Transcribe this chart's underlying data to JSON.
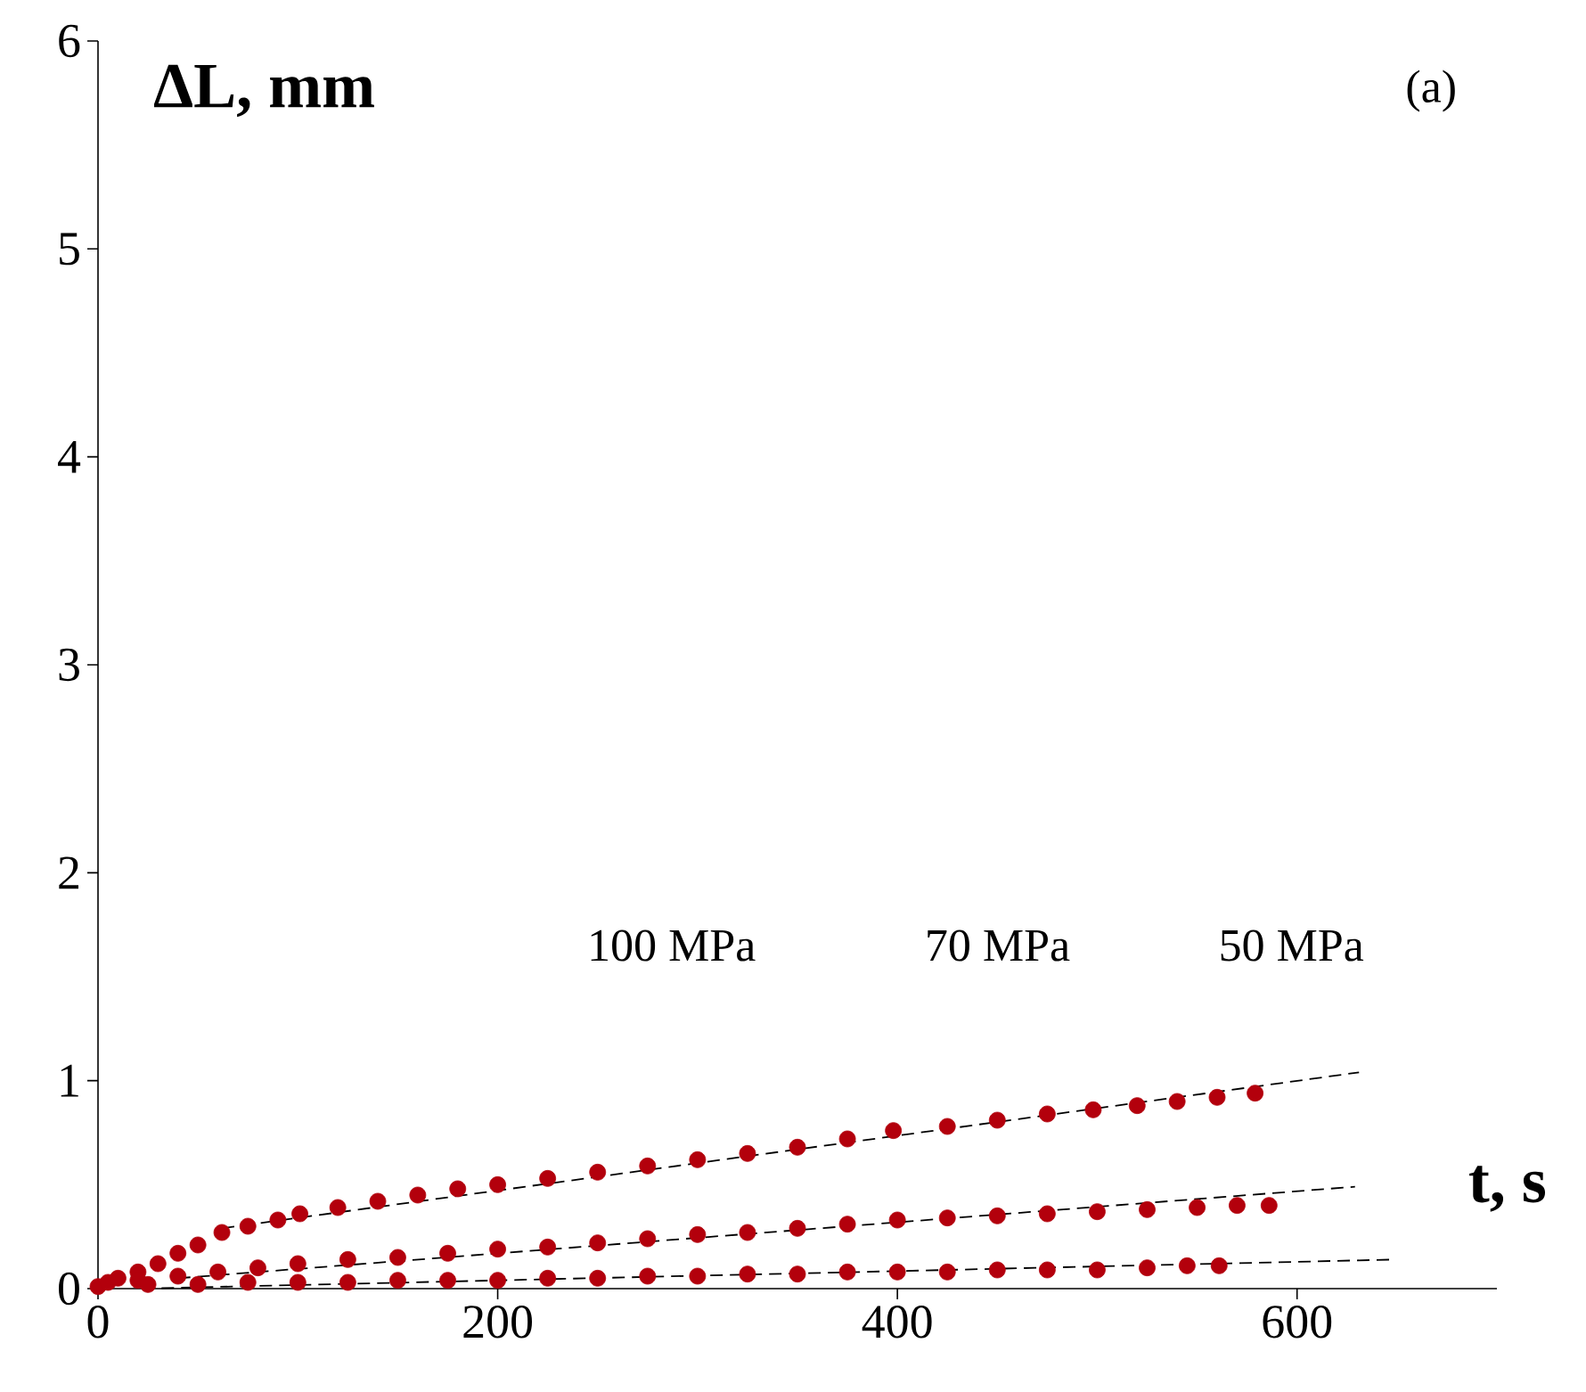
{
  "chart_data": {
    "type": "scatter",
    "ylabel": "ΔL, mm",
    "xlabel": "t, s",
    "xlim": [
      0,
      700
    ],
    "ylim": [
      0,
      6
    ],
    "xticks": [
      0,
      200,
      400,
      600
    ],
    "yticks": [
      0,
      1,
      2,
      3,
      4,
      5,
      6
    ],
    "marker": "circle",
    "annotations": [
      "100 MPa",
      "70 MPa",
      "50 MPa",
      "(a)"
    ],
    "series": [
      {
        "color": "#b3000c",
        "x": [
          0,
          5,
          10,
          20,
          30,
          40,
          50,
          62,
          75,
          90,
          101,
          120,
          140,
          160,
          180,
          200,
          225,
          250,
          275,
          300,
          325,
          350,
          375,
          398,
          425,
          450,
          475,
          498,
          520,
          540,
          560,
          579
        ],
        "values": [
          0.01,
          0.03,
          0.05,
          0.08,
          0.12,
          0.17,
          0.21,
          0.27,
          0.3,
          0.33,
          0.36,
          0.39,
          0.42,
          0.45,
          0.48,
          0.5,
          0.53,
          0.56,
          0.59,
          0.62,
          0.65,
          0.68,
          0.72,
          0.76,
          0.78,
          0.81,
          0.84,
          0.86,
          0.88,
          0.9,
          0.92,
          0.94
        ]
      },
      {
        "color": "#b3000c",
        "x": [
          20,
          40,
          60,
          80,
          100,
          125,
          150,
          175,
          200,
          225,
          250,
          275,
          300,
          325,
          350,
          375,
          400,
          425,
          450,
          475,
          500,
          525,
          550,
          570,
          586
        ],
        "values": [
          0.04,
          0.06,
          0.08,
          0.1,
          0.12,
          0.14,
          0.15,
          0.17,
          0.19,
          0.2,
          0.22,
          0.24,
          0.26,
          0.27,
          0.29,
          0.31,
          0.33,
          0.34,
          0.35,
          0.36,
          0.37,
          0.38,
          0.39,
          0.4,
          0.4
        ]
      },
      {
        "color": "#b3000c",
        "x": [
          25,
          50,
          75,
          100,
          125,
          150,
          175,
          200,
          225,
          250,
          275,
          300,
          325,
          350,
          375,
          400,
          425,
          450,
          475,
          500,
          525,
          545,
          561
        ],
        "values": [
          0.02,
          0.02,
          0.03,
          0.03,
          0.03,
          0.04,
          0.04,
          0.04,
          0.05,
          0.05,
          0.06,
          0.06,
          0.07,
          0.07,
          0.08,
          0.08,
          0.08,
          0.09,
          0.09,
          0.09,
          0.1,
          0.11,
          0.11
        ]
      },
      {
        "type": "line",
        "color": "#000000",
        "line_style": "dashed",
        "marker": "none",
        "x": [
          62,
          631
        ],
        "values": [
          0.29,
          1.04
        ]
      },
      {
        "type": "line",
        "color": "#000000",
        "line_style": "dashed",
        "marker": "none",
        "x": [
          40,
          629
        ],
        "values": [
          0.05,
          0.49
        ]
      },
      {
        "type": "line",
        "color": "#000000",
        "line_style": "dashed",
        "marker": "none",
        "x": [
          22,
          649
        ],
        "values": [
          0.0,
          0.14
        ]
      }
    ]
  }
}
